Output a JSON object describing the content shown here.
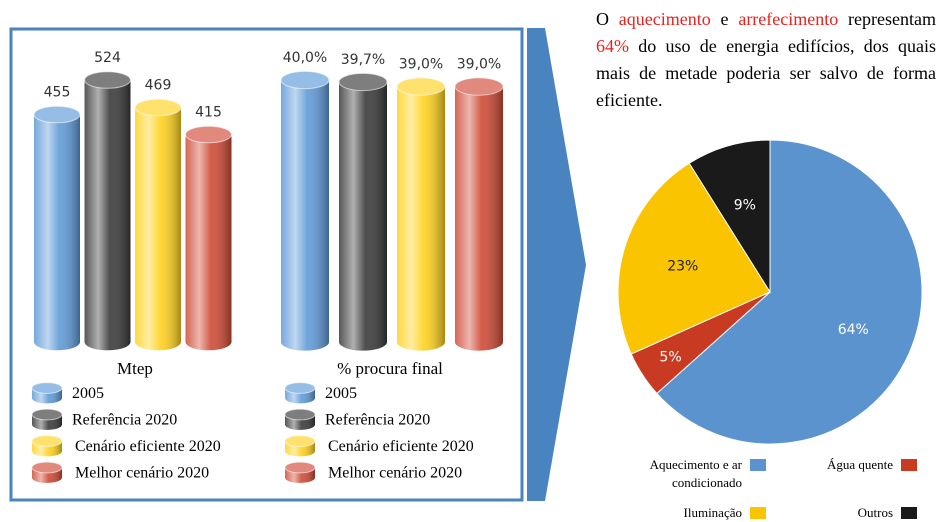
{
  "chart_data": [
    {
      "type": "bar",
      "title": "Mtep",
      "categories": [
        "2005",
        "Referência 2020",
        "Cenário eficiente 2020",
        "Melhor cenário 2020"
      ],
      "values": [
        455,
        524,
        469,
        415
      ],
      "colors": [
        "#5f9ad8",
        "#3a3a3a",
        "#ffd21f",
        "#cf4a36"
      ]
    },
    {
      "type": "bar",
      "title": "% procura final",
      "categories": [
        "2005",
        "Referência 2020",
        "Cenário eficiente 2020",
        "Melhor cenário 2020"
      ],
      "values": [
        40.0,
        39.7,
        39.0,
        39.0
      ],
      "value_labels": [
        "40,0%",
        "39,7%",
        "39,0%",
        "39,0%"
      ],
      "colors": [
        "#5f9ad8",
        "#3a3a3a",
        "#ffd21f",
        "#cf4a36"
      ]
    },
    {
      "type": "pie",
      "categories": [
        "Aquecimento e ar condicionado",
        "Água quente",
        "Iluminação",
        "Outros"
      ],
      "values": [
        64,
        5,
        23,
        9
      ],
      "value_labels": [
        "64%",
        "5%",
        "23%",
        "9%"
      ],
      "colors": [
        "#5b93cf",
        "#c83a22",
        "#fbc400",
        "#1a1a1a"
      ]
    }
  ],
  "paragraph": [
    {
      "text": "O ",
      "color": "#000000"
    },
    {
      "text": "aquecimento",
      "color": "#e8231f"
    },
    {
      "text": " e ",
      "color": "#000000"
    },
    {
      "text": "arrefecimento",
      "color": "#e8231f"
    },
    {
      "text": " representam ",
      "color": "#000000"
    },
    {
      "text": "64%",
      "color": "#e8231f"
    },
    {
      "text": " do uso de energia edifícios, dos quais mais de metade poderia ser salvo de forma eficiente.",
      "color": "#000000"
    }
  ]
}
